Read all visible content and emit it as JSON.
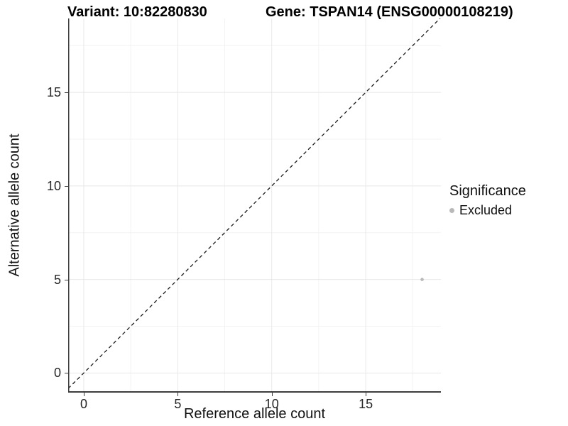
{
  "titles": {
    "variant": "Variant: 10:82280830",
    "gene": "Gene: TSPAN14 (ENSG00000108219)"
  },
  "chart_data": {
    "type": "scatter",
    "title": "Variant: 10:82280830 / Gene: TSPAN14 (ENSG00000108219)",
    "xlabel": "Reference allele count",
    "ylabel": "Alternative allele count",
    "xticks": [
      0,
      5,
      10,
      15
    ],
    "yticks": [
      0,
      5,
      10,
      15
    ],
    "minor_ticks_x": [
      2.5,
      7.5,
      12.5,
      17.5
    ],
    "minor_ticks_y": [
      2.5,
      7.5,
      12.5,
      17.5
    ],
    "xlim": [
      -0.83,
      19.0
    ],
    "ylim": [
      -1.05,
      18.95
    ],
    "grid": true,
    "points": [
      {
        "x": 18,
        "y": 5,
        "series": "Excluded"
      }
    ],
    "reference_line": {
      "slope": 1,
      "intercept": 0,
      "style": "dashed"
    },
    "legend": {
      "position": "right",
      "title": "Significance",
      "items": [
        {
          "label": "Excluded",
          "color": "#b9b9b9"
        }
      ]
    },
    "colors": {
      "point": "#b9b9b9",
      "axis_line": "#3d3d3d",
      "grid_major": "#e8e8e8",
      "grid_minor": "#f3f3f3",
      "reference_line": "#1a1a1a",
      "text": "#111111"
    }
  }
}
